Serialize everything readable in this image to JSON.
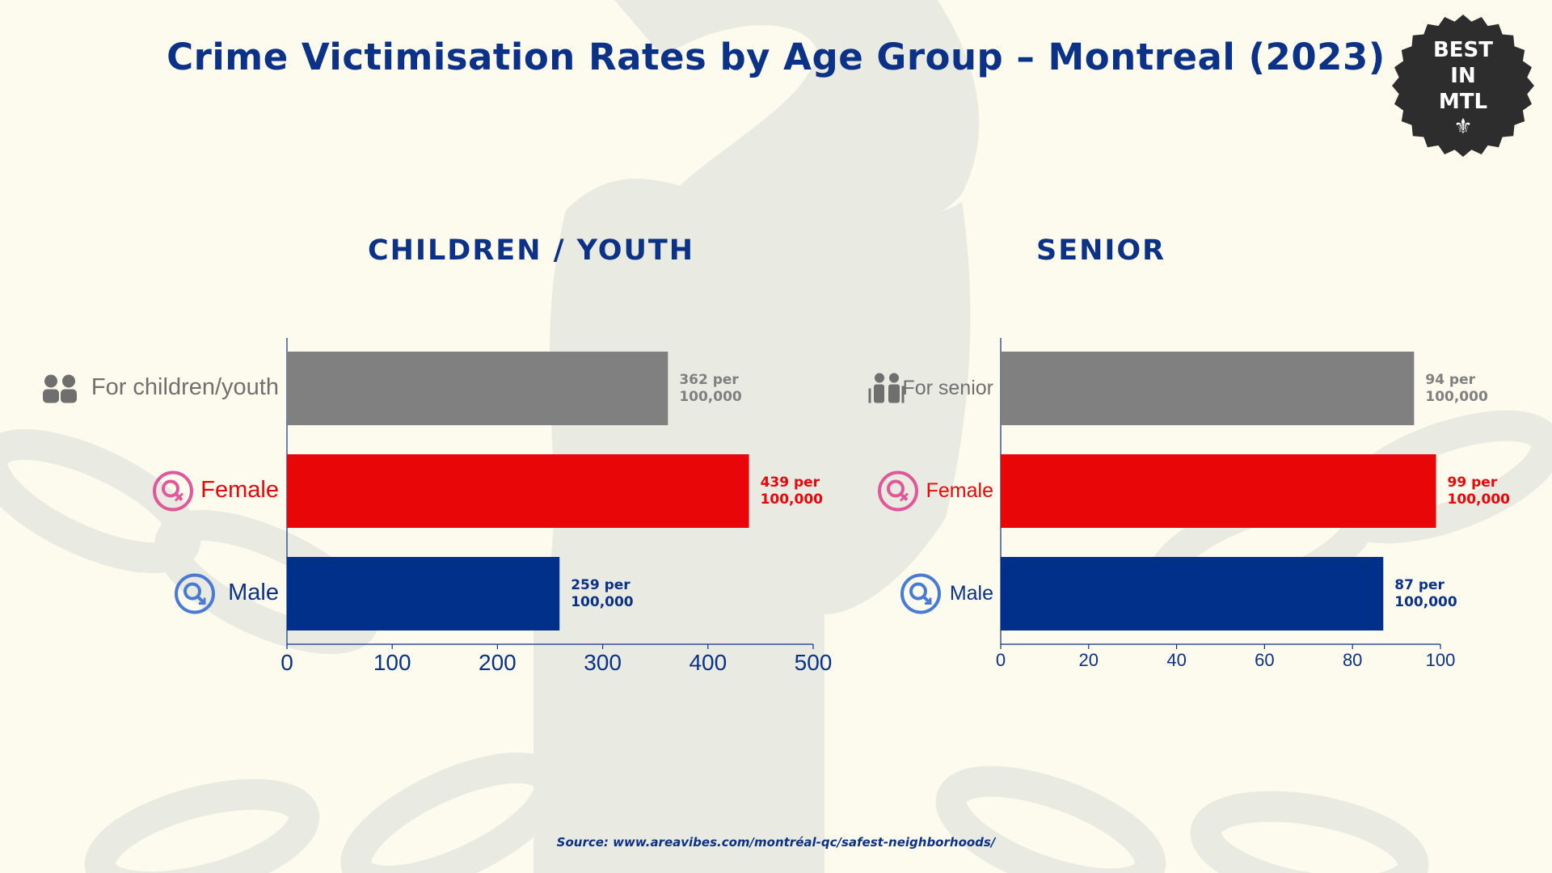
{
  "title": "Crime Victimisation Rates by Age Group – Montreal (2023)",
  "badge": {
    "text": "BEST\nIN\nMTL",
    "icon": "fleur-de-lis-icon"
  },
  "source": "Source: www.areavibes.com/montréal-qc/safest-neighborhoods/",
  "colors": {
    "total": "#808080",
    "female": "#e90609",
    "male": "#01308a",
    "title": "#0b3287",
    "background": "#fcfbee"
  },
  "chart_data": [
    {
      "type": "bar",
      "orientation": "horizontal",
      "title": "CHILDREN / YOUTH",
      "categories": [
        "For children/youth",
        "Female",
        "Male"
      ],
      "values": [
        362,
        439,
        259
      ],
      "value_labels": [
        "362 per\n100,000",
        "439 per\n100,000",
        "259 per\n100,000"
      ],
      "icons": [
        "children-icon",
        "female-symbol-icon",
        "male-symbol-icon"
      ],
      "xlim": [
        0,
        500
      ],
      "xticks": [
        0,
        100,
        200,
        300,
        400,
        500
      ],
      "grid": false
    },
    {
      "type": "bar",
      "orientation": "horizontal",
      "title": "SENIOR",
      "categories": [
        "For senior",
        "Female",
        "Male"
      ],
      "values": [
        94,
        99,
        87
      ],
      "value_labels": [
        "94 per\n100,000",
        "99 per\n100,000",
        "87 per\n100,000"
      ],
      "icons": [
        "senior-couple-icon",
        "female-symbol-icon",
        "male-symbol-icon"
      ],
      "xlim": [
        0,
        100
      ],
      "xticks": [
        0,
        20,
        40,
        60,
        80,
        100
      ],
      "grid": false
    }
  ]
}
